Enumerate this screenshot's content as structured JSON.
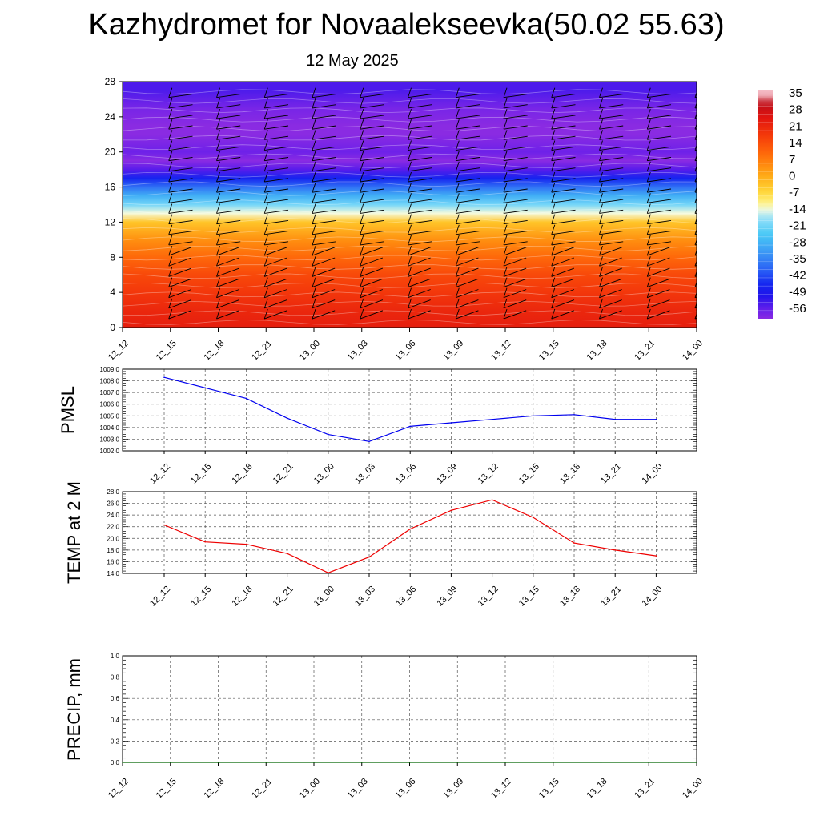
{
  "title": "Kazhydromet for Novaalekseevka(50.02 55.63)",
  "subtitle": "12 May 2025",
  "time_labels": [
    "12_12",
    "12_15",
    "12_18",
    "12_21",
    "13_00",
    "13_03",
    "13_06",
    "13_09",
    "13_12",
    "13_15",
    "13_18",
    "13_21",
    "14_00"
  ],
  "colors": {
    "pmsl_line": "#0000ee",
    "temp_line": "#ee0000",
    "precip_line": "#006400",
    "grid": "#555555"
  },
  "chart_data": [
    {
      "type": "heatmap",
      "title": "",
      "xlabel": "",
      "ylabel": "",
      "x": [
        "12_12",
        "12_15",
        "12_18",
        "12_21",
        "13_00",
        "13_03",
        "13_06",
        "13_09",
        "13_12",
        "13_15",
        "13_18",
        "13_21",
        "14_00"
      ],
      "y_ticks": [
        0,
        4,
        8,
        12,
        16,
        20,
        24,
        28
      ],
      "ylim": [
        0,
        28
      ],
      "colorbar_labels": [
        "35",
        "28",
        "21",
        "14",
        "7",
        "0",
        "-7",
        "-14",
        "-21",
        "-28",
        "-35",
        "-42",
        "-49",
        "-56"
      ],
      "temperature_profile": [
        {
          "level": 0,
          "value": 24
        },
        {
          "level": 2,
          "value": 22
        },
        {
          "level": 4,
          "value": 19
        },
        {
          "level": 6,
          "value": 16
        },
        {
          "level": 8,
          "value": 11
        },
        {
          "level": 10,
          "value": 5
        },
        {
          "level": 12,
          "value": -3
        },
        {
          "level": 13,
          "value": -13
        },
        {
          "level": 14,
          "value": -20
        },
        {
          "level": 15,
          "value": -28
        },
        {
          "level": 16,
          "value": -37
        },
        {
          "level": 17,
          "value": -46
        },
        {
          "level": 18,
          "value": -55
        },
        {
          "level": 19,
          "value": -60
        },
        {
          "level": 20,
          "value": -57
        },
        {
          "level": 22,
          "value": -60
        },
        {
          "level": 23,
          "value": -63
        },
        {
          "level": 25,
          "value": -58
        },
        {
          "level": 27,
          "value": -54
        },
        {
          "level": 28,
          "value": -54
        }
      ],
      "wind_barbs": true,
      "grid": false
    },
    {
      "type": "line",
      "ylabel": "PMSL",
      "categories": [
        "12_12",
        "12_15",
        "12_18",
        "12_21",
        "13_00",
        "13_03",
        "13_06",
        "13_09",
        "13_12",
        "13_15",
        "13_18",
        "13_21",
        "14_00"
      ],
      "values": [
        1008.3,
        1007.4,
        1006.5,
        1004.8,
        1003.4,
        1002.8,
        1004.1,
        1004.4,
        1004.7,
        1005.0,
        1005.1,
        1004.7,
        1004.7
      ],
      "y_ticks": [
        "1002.0",
        "1003.0",
        "1004.0",
        "1005.0",
        "1006.0",
        "1007.0",
        "1008.0",
        "1009.0"
      ],
      "ylim": [
        1002,
        1009
      ],
      "grid": true
    },
    {
      "type": "line",
      "ylabel": "TEMP at 2 M",
      "categories": [
        "12_12",
        "12_15",
        "12_18",
        "12_21",
        "13_00",
        "13_03",
        "13_06",
        "13_09",
        "13_12",
        "13_15",
        "13_18",
        "13_21",
        "14_00"
      ],
      "values": [
        22.3,
        19.4,
        19.0,
        17.4,
        14.1,
        16.8,
        21.6,
        24.8,
        26.6,
        23.6,
        19.2,
        18.0,
        17.0
      ],
      "y_ticks": [
        "14.0",
        "16.0",
        "18.0",
        "20.0",
        "22.0",
        "24.0",
        "26.0",
        "28.0"
      ],
      "ylim": [
        14,
        28
      ],
      "grid": true
    },
    {
      "type": "line",
      "ylabel": "PRECIP, mm",
      "categories": [
        "12_12",
        "12_15",
        "12_18",
        "12_21",
        "13_00",
        "13_03",
        "13_06",
        "13_09",
        "13_12",
        "13_15",
        "13_18",
        "13_21",
        "14_00"
      ],
      "values": [
        0,
        0,
        0,
        0,
        0,
        0,
        0,
        0,
        0,
        0,
        0,
        0,
        0
      ],
      "y_ticks": [
        "0.0",
        "0.2",
        "0.4",
        "0.6",
        "0.8",
        "1.0"
      ],
      "ylim": [
        0,
        1
      ],
      "grid": true
    }
  ]
}
